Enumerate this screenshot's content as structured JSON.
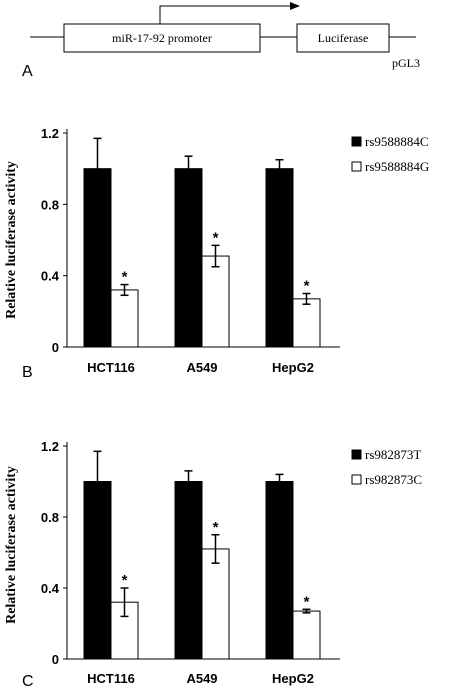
{
  "schematic": {
    "panel_letter": "A",
    "promoter_label": "miR-17-92 promoter",
    "reporter_label": "Luciferase",
    "vector_label": "pGL3"
  },
  "chart_data": [
    {
      "type": "bar",
      "panel_letter": "B",
      "categories": [
        "HCT116",
        "A549",
        "HepG2"
      ],
      "series": [
        {
          "name": "rs9588884C",
          "values": [
            1.0,
            1.0,
            1.0
          ],
          "errors": [
            0.17,
            0.07,
            0.05
          ],
          "fill": "#000000"
        },
        {
          "name": "rs9588884G",
          "values": [
            0.32,
            0.51,
            0.27
          ],
          "errors": [
            0.03,
            0.06,
            0.03
          ],
          "fill": "#ffffff"
        }
      ],
      "significance": [
        "*",
        "*",
        "*"
      ],
      "ylabel": "Relative luciferase activity",
      "ylim": [
        0,
        1.2
      ],
      "yticks": [
        "0",
        "0.4",
        "0.8",
        "1.2"
      ],
      "legend_position": "top-right"
    },
    {
      "type": "bar",
      "panel_letter": "C",
      "categories": [
        "HCT116",
        "A549",
        "HepG2"
      ],
      "series": [
        {
          "name": "rs982873T",
          "values": [
            1.0,
            1.0,
            1.0
          ],
          "errors": [
            0.17,
            0.06,
            0.04
          ],
          "fill": "#000000"
        },
        {
          "name": "rs982873C",
          "values": [
            0.32,
            0.62,
            0.27
          ],
          "errors": [
            0.08,
            0.08,
            0.01
          ],
          "fill": "#ffffff"
        }
      ],
      "significance": [
        "*",
        "*",
        "*"
      ],
      "ylabel": "Relative luciferase activity",
      "ylim": [
        0,
        1.2
      ],
      "yticks": [
        "0",
        "0.4",
        "0.8",
        "1.2"
      ],
      "legend_position": "top-right"
    }
  ]
}
